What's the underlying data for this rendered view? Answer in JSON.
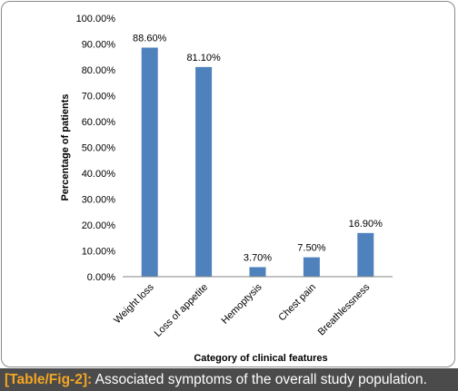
{
  "chart_data": {
    "type": "bar",
    "categories": [
      "Weight loss",
      "Loss of appetite",
      "Hemoptysis",
      "Chest pain",
      "Breathlessness"
    ],
    "values": [
      88.6,
      81.1,
      3.7,
      7.5,
      16.9
    ],
    "data_labels": [
      "88.60%",
      "81.10%",
      "3.70%",
      "7.50%",
      "16.90%"
    ],
    "ylim": [
      0,
      100
    ],
    "y_ticks": [
      0,
      10,
      20,
      30,
      40,
      50,
      60,
      70,
      80,
      90,
      100
    ],
    "y_tick_labels": [
      "0.00%",
      "10.00%",
      "20.00%",
      "30.00%",
      "40.00%",
      "50.00%",
      "60.00%",
      "70.00%",
      "80.00%",
      "90.00%",
      "100.00%"
    ],
    "xlabel": "Category of clinical features",
    "ylabel": "Percentage of patients",
    "grid": false,
    "bar_color": "#4f81bd"
  },
  "caption": {
    "label": "[Table/Fig-2]:",
    "text": " Associated symptoms of the overall study population."
  }
}
